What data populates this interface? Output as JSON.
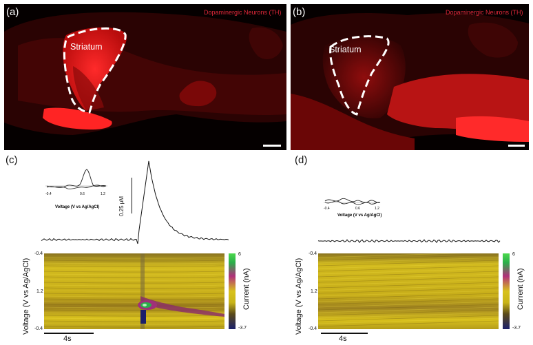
{
  "panels": {
    "a": {
      "letter": "(a)",
      "marker_label": "Dopaminergic Neurons (TH)",
      "region_label": "Striatum"
    },
    "b": {
      "letter": "(b)",
      "marker_label": "Dopaminergic Neurons (TH)",
      "region_label": "Striatum"
    },
    "c": {
      "letter": "(c)",
      "inset_ticks": [
        "-0.4",
        "0.6",
        "1.2"
      ],
      "inset_xlabel": "Voltage (V vs Ag/AgCl)",
      "conc_scale": "0.25 μM",
      "ylabel": "Voltage (V vs Ag/AgCl)",
      "y_ticks": [
        "-0.4",
        "1.2",
        "-0.4"
      ],
      "cbar_label": "Current (nA)",
      "cbar_ticks": [
        "6",
        "-3.7"
      ],
      "time_scale": "4s"
    },
    "d": {
      "letter": "(d)",
      "inset_ticks": [
        "-0.4",
        "0.6",
        "1.2"
      ],
      "inset_xlabel": "Voltage (V vs Ag/AgCl)",
      "ylabel": "Voltage (V vs Ag/AgCl)",
      "y_ticks": [
        "-0.4",
        "1.2",
        "-0.4"
      ],
      "cbar_label": "Current (nA)",
      "cbar_ticks": [
        "6",
        "-3.7"
      ],
      "time_scale": "4s"
    }
  },
  "colors": {
    "th_red": "#e0283a",
    "tissue_red": "#a01010",
    "colormap": [
      "#1a1f6b",
      "#5a4a1a",
      "#c8b418",
      "#d8c21c",
      "#b0307a",
      "#2ab04a",
      "#4cd84c"
    ]
  }
}
